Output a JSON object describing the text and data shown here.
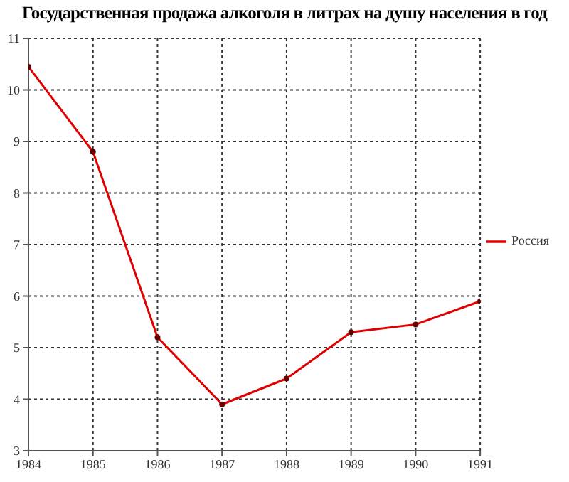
{
  "chart_data": {
    "type": "line",
    "title": "Государственная продажа алкоголя в литрах на душу населения в год",
    "x": [
      1984,
      1985,
      1986,
      1987,
      1988,
      1989,
      1990,
      1991
    ],
    "series": [
      {
        "name": "Россия",
        "color": "#e00000",
        "values": [
          10.45,
          8.8,
          5.2,
          3.9,
          4.4,
          5.3,
          5.45,
          5.9
        ]
      }
    ],
    "xlim": [
      1984,
      1991
    ],
    "xticks": [
      1984,
      1985,
      1986,
      1987,
      1988,
      1989,
      1990,
      1991
    ],
    "ylim": [
      3,
      11
    ],
    "yticks": [
      3,
      4,
      5,
      6,
      7,
      8,
      9,
      10,
      11
    ],
    "grid": true,
    "legend": "right",
    "marker": "circle",
    "line_style": "solid"
  }
}
